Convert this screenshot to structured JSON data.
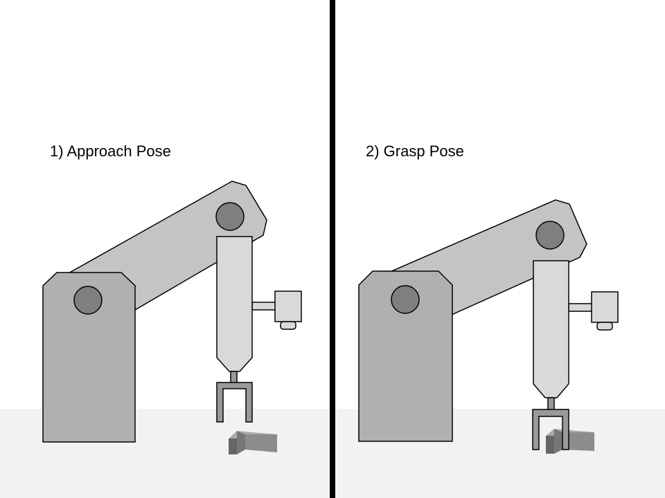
{
  "panels": [
    {
      "label": "1) Approach Pose"
    },
    {
      "label": "2) Grasp Pose"
    }
  ],
  "colors": {
    "background": "#ffffff",
    "floor": "#f2f2f2",
    "divider": "#000000",
    "base_fill": "#b0b0b0",
    "arm_fill": "#c4c4c4",
    "link_fill": "#d9d9d9",
    "joint_fill": "#7f7f7f",
    "gripper_fill": "#999999",
    "object_front": "#8c8c8c",
    "object_side": "#666666",
    "object_top": "#aaaaaa",
    "stroke": "#000000"
  }
}
